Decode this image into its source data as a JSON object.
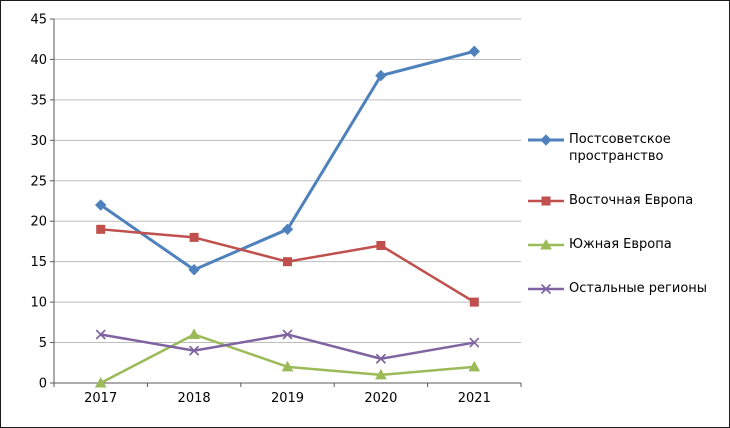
{
  "chart_data": {
    "type": "line",
    "categories": [
      "2017",
      "2018",
      "2019",
      "2020",
      "2021"
    ],
    "series": [
      {
        "name": "Постсоветское пространство",
        "values": [
          22,
          14,
          19,
          38,
          41
        ],
        "color": "#4F81BD",
        "marker": "diamond"
      },
      {
        "name": "Восточная Европа",
        "values": [
          19,
          18,
          15,
          17,
          10
        ],
        "color": "#C0504D",
        "marker": "square"
      },
      {
        "name": "Южная Европа",
        "values": [
          0,
          6,
          2,
          1,
          2
        ],
        "color": "#9BBB59",
        "marker": "triangle"
      },
      {
        "name": "Остальные регионы",
        "values": [
          6,
          4,
          6,
          3,
          5
        ],
        "color": "#8064A2",
        "marker": "x"
      }
    ],
    "title": "",
    "xlabel": "",
    "ylabel": "",
    "ylim": [
      0,
      45
    ],
    "ytick_step": 5,
    "yticks": [
      0,
      5,
      10,
      15,
      20,
      25,
      30,
      35,
      40,
      45
    ],
    "grid": true,
    "legend_position": "right",
    "colors": {
      "gridline": "#BDBDBD",
      "axis": "#5A5A5A",
      "text": "#000000",
      "frame_border": "#1a1a1a"
    }
  }
}
